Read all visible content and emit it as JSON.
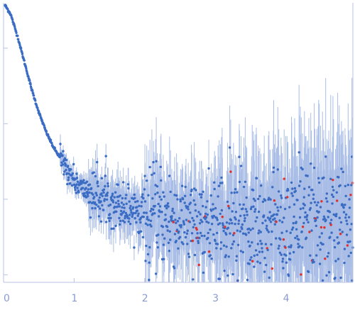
{
  "chart_data": {
    "type": "scatter",
    "title": "",
    "xlabel": "",
    "ylabel": "",
    "xlim": [
      0,
      4.95
    ],
    "ylim": [
      -0.1,
      3.6
    ],
    "grid": false,
    "x_tick_labels": [
      "0",
      "1",
      "2",
      "3",
      "4"
    ],
    "x_ticks": [
      0,
      1,
      2,
      3,
      4
    ],
    "y_ticks": [
      0,
      1,
      2,
      3
    ],
    "colors": {
      "points": "#3b6cc4",
      "error_band": "#c3d2ef",
      "outliers": "#e0302e",
      "axis": "#b9c3e3"
    },
    "curve_model": {
      "description_of_visible_trend": "",
      "anchor_points": [
        {
          "x": 0.02,
          "y": 3.57
        },
        {
          "x": 0.1,
          "y": 3.45
        },
        {
          "x": 0.2,
          "y": 3.15
        },
        {
          "x": 0.3,
          "y": 2.8
        },
        {
          "x": 0.4,
          "y": 2.45
        },
        {
          "x": 0.5,
          "y": 2.15
        },
        {
          "x": 0.6,
          "y": 1.9
        },
        {
          "x": 0.7,
          "y": 1.7
        },
        {
          "x": 0.8,
          "y": 1.55
        },
        {
          "x": 0.9,
          "y": 1.4
        },
        {
          "x": 1.0,
          "y": 1.25
        },
        {
          "x": 1.1,
          "y": 1.15
        },
        {
          "x": 1.3,
          "y": 1.05
        },
        {
          "x": 1.6,
          "y": 0.95
        },
        {
          "x": 2.0,
          "y": 0.82
        },
        {
          "x": 2.5,
          "y": 0.7
        },
        {
          "x": 3.0,
          "y": 0.65
        },
        {
          "x": 3.5,
          "y": 0.68
        },
        {
          "x": 4.0,
          "y": 0.72
        },
        {
          "x": 4.5,
          "y": 0.75
        },
        {
          "x": 4.95,
          "y": 0.78
        }
      ]
    },
    "series": [
      {
        "name": "",
        "role": "data_points"
      },
      {
        "name": "",
        "role": "negative_points"
      }
    ]
  }
}
